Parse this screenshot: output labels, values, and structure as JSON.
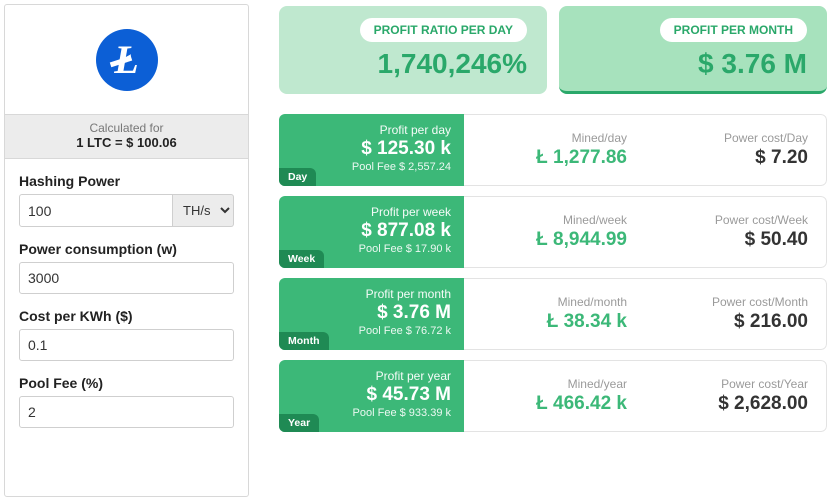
{
  "colors": {
    "accent_green": "#3cb878",
    "accent_dark_green": "#1f8a54",
    "light_green_card": "#bfe8cf",
    "light_green_card_active": "#a7e2bd",
    "logo_blue": "#0c5fd6",
    "text": "#222222",
    "muted": "#9a9a9a",
    "border": "#e3e3e3",
    "panel_border": "#d8d8d8",
    "gray_bg": "#ececec"
  },
  "sidebar": {
    "coin_symbol": "Ł",
    "calculated_for_label": "Calculated for",
    "calculated_for_value": "1 LTC = $ 100.06",
    "fields": {
      "hashing": {
        "label": "Hashing Power",
        "value": "100",
        "unit": "TH/s",
        "unit_options": [
          "TH/s"
        ]
      },
      "power": {
        "label": "Power consumption (w)",
        "value": "3000"
      },
      "cost": {
        "label": "Cost per KWh ($)",
        "value": "0.1"
      },
      "fee": {
        "label": "Pool Fee (%)",
        "value": "2"
      }
    }
  },
  "summary": {
    "profit_ratio": {
      "pill": "PROFIT RATIO PER DAY",
      "value": "1,740,246%"
    },
    "profit_month": {
      "pill": "PROFIT PER MONTH",
      "value": "$ 3.76 M"
    }
  },
  "periods": [
    {
      "tag": "Day",
      "profit_label": "Profit per day",
      "profit_value": "$ 125.30 k",
      "fee": "Pool Fee $ 2,557.24",
      "mined_label": "Mined/day",
      "mined_value": "Ł 1,277.86",
      "power_label": "Power cost/Day",
      "power_value": "$ 7.20"
    },
    {
      "tag": "Week",
      "profit_label": "Profit per week",
      "profit_value": "$ 877.08 k",
      "fee": "Pool Fee $ 17.90 k",
      "mined_label": "Mined/week",
      "mined_value": "Ł 8,944.99",
      "power_label": "Power cost/Week",
      "power_value": "$ 50.40"
    },
    {
      "tag": "Month",
      "profit_label": "Profit per month",
      "profit_value": "$ 3.76 M",
      "fee": "Pool Fee $ 76.72 k",
      "mined_label": "Mined/month",
      "mined_value": "Ł 38.34 k",
      "power_label": "Power cost/Month",
      "power_value": "$ 216.00"
    },
    {
      "tag": "Year",
      "profit_label": "Profit per year",
      "profit_value": "$ 45.73 M",
      "fee": "Pool Fee $ 933.39 k",
      "mined_label": "Mined/year",
      "mined_value": "Ł 466.42 k",
      "power_label": "Power cost/Year",
      "power_value": "$ 2,628.00"
    }
  ]
}
